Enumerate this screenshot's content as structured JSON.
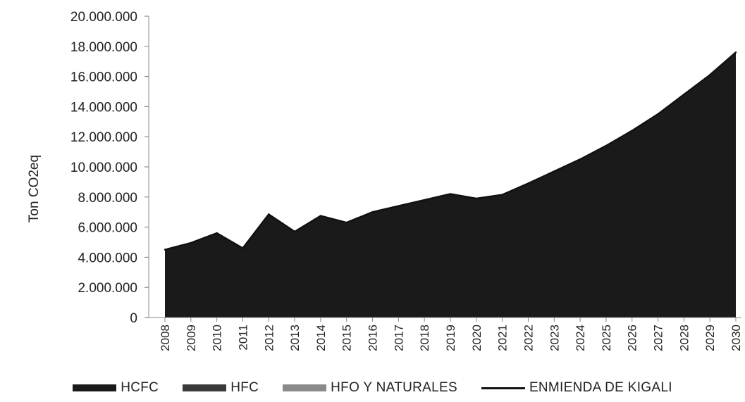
{
  "chart_data": {
    "type": "area",
    "title": "",
    "xlabel": "",
    "ylabel": "Ton CO2eq",
    "ylim": [
      0,
      20000000
    ],
    "y_ticks": [
      "0",
      "2.000.000",
      "4.000.000",
      "6.000.000",
      "8.000.000",
      "10.000.000",
      "12.000.000",
      "14.000.000",
      "16.000.000",
      "18.000.000",
      "20.000.000"
    ],
    "grid": false,
    "legend_position": "bottom",
    "x": [
      "2008",
      "2009",
      "2010",
      "2011",
      "2012",
      "2013",
      "2014",
      "2015",
      "2016",
      "2017",
      "2018",
      "2019",
      "2020",
      "2021",
      "2022",
      "2023",
      "2024",
      "2025",
      "2026",
      "2027",
      "2028",
      "2029",
      "2030"
    ],
    "stacked": true,
    "series": [
      {
        "name": "HCFC",
        "kind": "area",
        "color": "#1a1a1a",
        "values": [
          4500000,
          4950000,
          5600000,
          4600000,
          6850000,
          5700000,
          6750000,
          6300000,
          7000000,
          7400000,
          7800000,
          8200000,
          7900000,
          8150000,
          8900000,
          9700000,
          10500000,
          11400000,
          12400000,
          13500000,
          14800000,
          16100000,
          17600000
        ]
      },
      {
        "name": "HFC",
        "kind": "area",
        "color": "#3a3a3a",
        "values": [
          0,
          0,
          0,
          0,
          0,
          0,
          0,
          0,
          0,
          0,
          0,
          0,
          0,
          0,
          0,
          0,
          0,
          0,
          0,
          0,
          0,
          0,
          0
        ]
      },
      {
        "name": "HFO Y NATURALES",
        "kind": "area",
        "color": "#8a8a8a",
        "values": [
          0,
          0,
          0,
          0,
          0,
          0,
          0,
          0,
          0,
          0,
          0,
          0,
          0,
          0,
          0,
          0,
          0,
          0,
          0,
          0,
          0,
          0,
          0
        ]
      },
      {
        "name": "ENMIENDA DE KIGALI",
        "kind": "line",
        "color": "#111111",
        "values": [
          4500000,
          4950000,
          5600000,
          4600000,
          6850000,
          5700000,
          6750000,
          6300000,
          7000000,
          7400000,
          7800000,
          8200000,
          7900000,
          8150000,
          8900000,
          9700000,
          10500000,
          11400000,
          12400000,
          13500000,
          14800000,
          16100000,
          17600000
        ]
      }
    ]
  }
}
